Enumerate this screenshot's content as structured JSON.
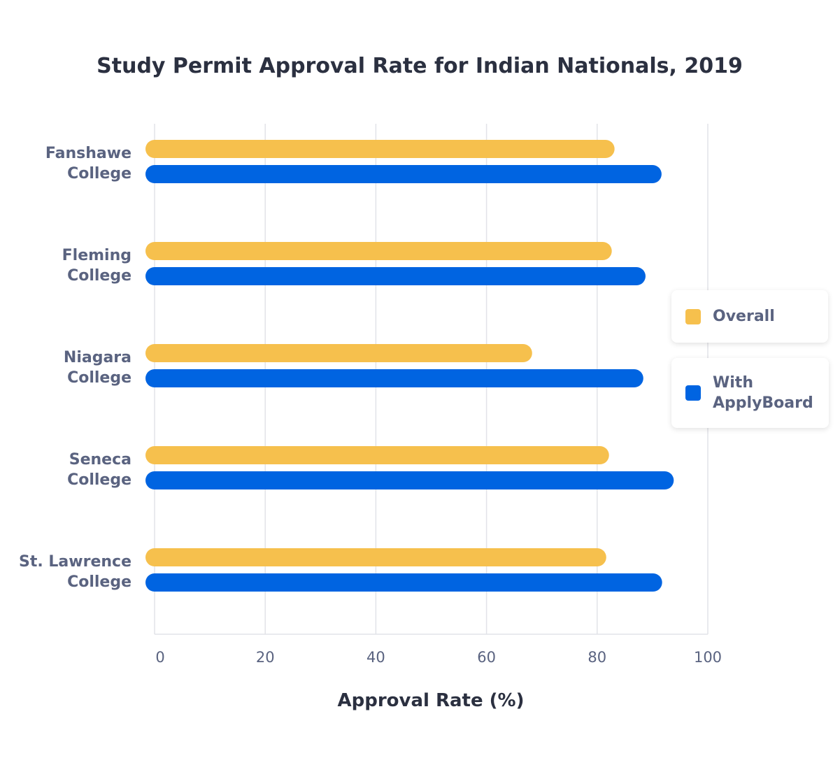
{
  "chart_data": {
    "type": "bar",
    "orientation": "horizontal",
    "title": "Study Permit Approval Rate for Indian Nationals, 2019",
    "xlabel": "Approval Rate (%)",
    "ylabel": "",
    "xlim": [
      0,
      100
    ],
    "xticks": [
      "0",
      "20",
      "40",
      "60",
      "80",
      "100"
    ],
    "grid": "vertical",
    "legend_position": "right",
    "categories": [
      "Fanshawe College",
      "Fleming College",
      "Niagara College",
      "Seneca College",
      "St. Lawrence College"
    ],
    "series": [
      {
        "name": "Overall",
        "color": "#F6C04D",
        "values": [
          81.5,
          81.0,
          66.6,
          80.5,
          80.0
        ]
      },
      {
        "name": "With ApplyBoard",
        "color": "#0064E1",
        "values": [
          90.0,
          87.1,
          86.7,
          92.2,
          90.1
        ]
      }
    ]
  }
}
